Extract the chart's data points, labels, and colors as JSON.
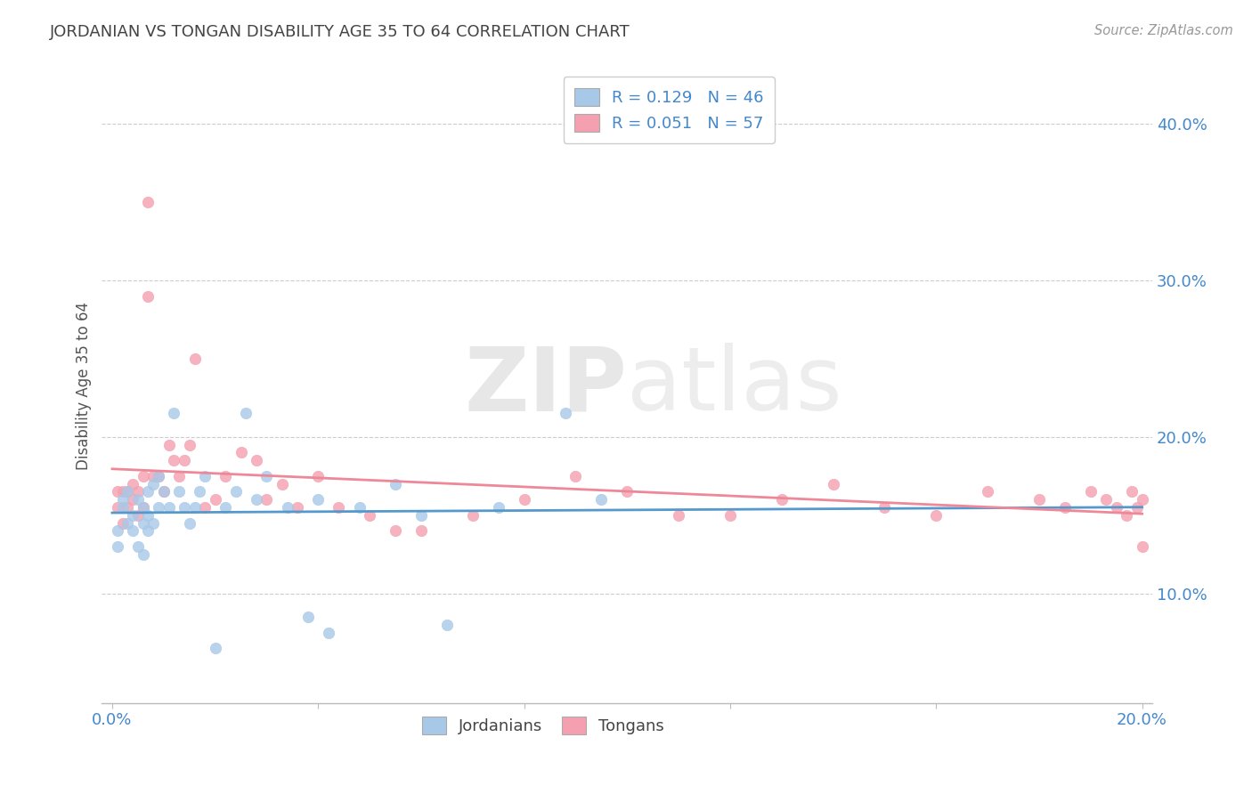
{
  "title": "JORDANIAN VS TONGAN DISABILITY AGE 35 TO 64 CORRELATION CHART",
  "source_text": "Source: ZipAtlas.com",
  "ylabel": "Disability Age 35 to 64",
  "xlim": [
    -0.002,
    0.202
  ],
  "ylim": [
    0.03,
    0.435
  ],
  "yticks": [
    0.1,
    0.2,
    0.3,
    0.4
  ],
  "ytick_labels": [
    "10.0%",
    "20.0%",
    "30.0%",
    "40.0%"
  ],
  "xtick_edge_labels": [
    "0.0%",
    "20.0%"
  ],
  "jordanian_color": "#A8C8E8",
  "tongan_color": "#F4A0B0",
  "jordanian_line_color": "#5599CC",
  "tongan_line_color": "#EE8899",
  "jordanian_R": 0.129,
  "jordanian_N": 46,
  "tongan_R": 0.051,
  "tongan_N": 57,
  "jordanian_x": [
    0.001,
    0.001,
    0.002,
    0.002,
    0.003,
    0.003,
    0.004,
    0.004,
    0.005,
    0.005,
    0.006,
    0.006,
    0.006,
    0.007,
    0.007,
    0.007,
    0.008,
    0.008,
    0.009,
    0.009,
    0.01,
    0.011,
    0.012,
    0.013,
    0.014,
    0.015,
    0.016,
    0.017,
    0.018,
    0.02,
    0.022,
    0.024,
    0.026,
    0.028,
    0.03,
    0.034,
    0.038,
    0.04,
    0.042,
    0.048,
    0.055,
    0.06,
    0.065,
    0.075,
    0.088,
    0.095
  ],
  "jordanian_y": [
    0.13,
    0.14,
    0.155,
    0.16,
    0.145,
    0.165,
    0.15,
    0.14,
    0.16,
    0.13,
    0.155,
    0.145,
    0.125,
    0.165,
    0.15,
    0.14,
    0.17,
    0.145,
    0.175,
    0.155,
    0.165,
    0.155,
    0.215,
    0.165,
    0.155,
    0.145,
    0.155,
    0.165,
    0.175,
    0.065,
    0.155,
    0.165,
    0.215,
    0.16,
    0.175,
    0.155,
    0.085,
    0.16,
    0.075,
    0.155,
    0.17,
    0.15,
    0.08,
    0.155,
    0.215,
    0.16
  ],
  "tongan_x": [
    0.001,
    0.001,
    0.002,
    0.002,
    0.003,
    0.003,
    0.004,
    0.004,
    0.005,
    0.005,
    0.006,
    0.006,
    0.007,
    0.007,
    0.008,
    0.009,
    0.01,
    0.011,
    0.012,
    0.013,
    0.014,
    0.015,
    0.016,
    0.018,
    0.02,
    0.022,
    0.025,
    0.028,
    0.03,
    0.033,
    0.036,
    0.04,
    0.044,
    0.05,
    0.055,
    0.06,
    0.07,
    0.08,
    0.09,
    0.1,
    0.11,
    0.12,
    0.13,
    0.14,
    0.15,
    0.16,
    0.17,
    0.18,
    0.185,
    0.19,
    0.193,
    0.195,
    0.197,
    0.198,
    0.199,
    0.2,
    0.2
  ],
  "tongan_y": [
    0.155,
    0.165,
    0.145,
    0.165,
    0.165,
    0.155,
    0.16,
    0.17,
    0.15,
    0.165,
    0.175,
    0.155,
    0.35,
    0.29,
    0.175,
    0.175,
    0.165,
    0.195,
    0.185,
    0.175,
    0.185,
    0.195,
    0.25,
    0.155,
    0.16,
    0.175,
    0.19,
    0.185,
    0.16,
    0.17,
    0.155,
    0.175,
    0.155,
    0.15,
    0.14,
    0.14,
    0.15,
    0.16,
    0.175,
    0.165,
    0.15,
    0.15,
    0.16,
    0.17,
    0.155,
    0.15,
    0.165,
    0.16,
    0.155,
    0.165,
    0.16,
    0.155,
    0.15,
    0.165,
    0.155,
    0.16,
    0.13
  ],
  "watermark_zip": "ZIP",
  "watermark_atlas": "atlas",
  "background_color": "#FFFFFF",
  "grid_color": "#CCCCCC",
  "title_color": "#444444",
  "axis_tick_color": "#4488CC",
  "legend_R_color": "#4488CC"
}
